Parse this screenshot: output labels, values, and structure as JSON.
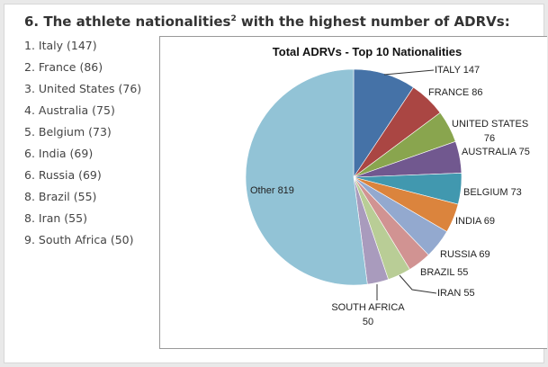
{
  "heading": {
    "text": "6.  The athlete nationalities",
    "superscript": "2",
    "suffix": " with the highest number of ADRVs:"
  },
  "list": [
    "1. Italy (147)",
    "2. France (86)",
    "3. United States (76)",
    "4. Australia (75)",
    "5. Belgium (73)",
    "6. India (69)",
    "6. Russia (69)",
    "8. Brazil (55)",
    "8. Iran (55)",
    "9. South Africa (50)"
  ],
  "chart_data": {
    "type": "pie",
    "title": "Total ADRVs - Top 10 Nationalities",
    "start": "12 o'clock, clockwise",
    "categories": [
      "ITALY",
      "FRANCE",
      "UNITED STATES",
      "AUSTRALIA",
      "BELGIUM",
      "INDIA",
      "RUSSIA",
      "BRAZIL",
      "IRAN",
      "SOUTH AFRICA",
      "Other"
    ],
    "values": [
      147,
      86,
      76,
      75,
      73,
      69,
      69,
      55,
      55,
      50,
      819
    ],
    "labels": [
      "ITALY 147",
      "FRANCE 86",
      "UNITED STATES|76",
      "AUSTRALIA 75",
      "BELGIUM 73",
      "INDIA 69",
      "RUSSIA 69",
      "BRAZIL 55",
      "IRAN 55",
      "SOUTH AFRICA|50",
      "Other 819"
    ],
    "colors": [
      "#4572a7",
      "#aa4643",
      "#89a54e",
      "#71588f",
      "#4198af",
      "#db843d",
      "#93a9cf",
      "#d19392",
      "#b9cd96",
      "#a99bbd",
      "#92c3d6"
    ]
  }
}
